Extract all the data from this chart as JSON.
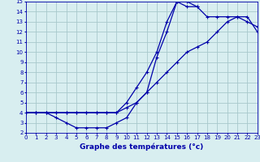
{
  "xlabel": "Graphe des températures (°c)",
  "bg_color": "#d8eef0",
  "grid_color": "#a8c8cc",
  "line_color": "#0000aa",
  "xmin": 0,
  "xmax": 23,
  "ymin": 2,
  "ymax": 15,
  "curve1_x": [
    0,
    1,
    2,
    3,
    4,
    5,
    6,
    7,
    8,
    9,
    10,
    11,
    12,
    13,
    14,
    15,
    16,
    17
  ],
  "curve1_y": [
    4,
    4,
    4,
    3.5,
    3,
    2.5,
    2.5,
    2.5,
    2.5,
    3,
    3.5,
    5,
    6,
    9.5,
    12,
    15,
    15,
    14.5
  ],
  "curve2_x": [
    0,
    1,
    2,
    3,
    4,
    5,
    6,
    7,
    8,
    9,
    10,
    11,
    12,
    13,
    14,
    15,
    16,
    17,
    18,
    19,
    20,
    21,
    22,
    23
  ],
  "curve2_y": [
    4,
    4,
    4,
    4,
    4,
    4,
    4,
    4,
    4,
    4,
    4.5,
    5,
    6,
    7,
    8,
    9,
    10,
    10.5,
    11,
    12,
    13,
    13.5,
    13.5,
    12
  ],
  "curve3_x": [
    0,
    1,
    2,
    3,
    4,
    5,
    6,
    7,
    8,
    9,
    10,
    11,
    12,
    13,
    14,
    15,
    16,
    17,
    18,
    19,
    20,
    21,
    22,
    23
  ],
  "curve3_y": [
    4,
    4,
    4,
    4,
    4,
    4,
    4,
    4,
    4,
    4,
    5,
    6.5,
    8,
    10,
    13,
    15,
    14.5,
    14.5,
    13.5,
    13.5,
    13.5,
    13.5,
    13,
    12.5
  ]
}
